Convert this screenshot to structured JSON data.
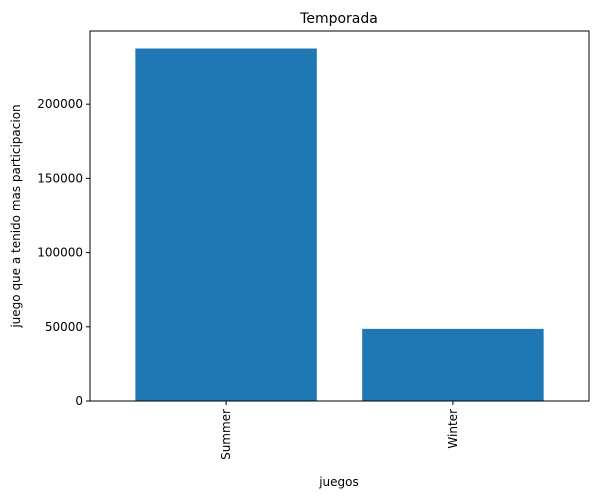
{
  "chart_data": {
    "type": "bar",
    "title": "Temporada",
    "xlabel": "juegos",
    "ylabel": "juego que a tenido mas participacion",
    "categories": [
      "Summer",
      "Winter"
    ],
    "values": [
      237500,
      48600
    ],
    "ylim": [
      0,
      249300
    ],
    "yticks": [
      0,
      50000,
      100000,
      150000,
      200000
    ],
    "ytick_labels": [
      "0",
      "50000",
      "100000",
      "150000",
      "200000"
    ],
    "bar_color": "#1f77b4",
    "grid": false,
    "x_tick_rotation": "vertical"
  }
}
